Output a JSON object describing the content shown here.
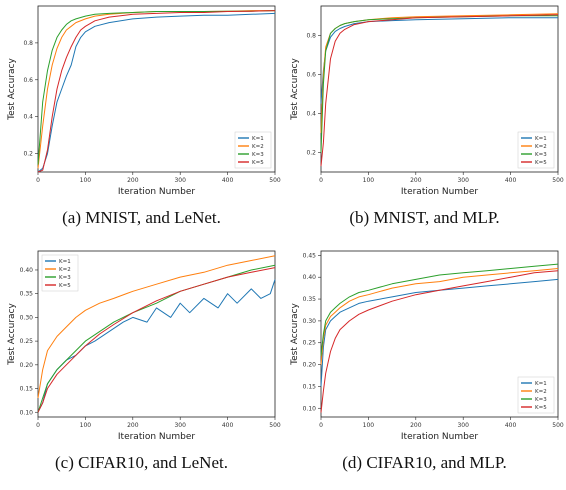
{
  "colors": {
    "K=1": "#1f77b4",
    "K=2": "#ff7f0e",
    "K=3": "#2ca02c",
    "K=5": "#d62728"
  },
  "chart_data": [
    {
      "type": "line",
      "caption": "(a) MNIST, and LeNet.",
      "xlabel": "Iteration Number",
      "ylabel": "Test Accuracy",
      "xlim": [
        0,
        500
      ],
      "ylim": [
        0.1,
        1.0
      ],
      "xticks": [
        0,
        100,
        200,
        300,
        400,
        500
      ],
      "xticklabels": [
        "0",
        "100",
        "200",
        "300",
        "400",
        "500"
      ],
      "yticks": [
        0.2,
        0.4,
        0.6,
        0.8
      ],
      "yticklabels": [
        "0.2",
        "0.4",
        "0.6",
        "0.8"
      ],
      "legend": "lower-right",
      "series": [
        {
          "name": "K=1",
          "x": [
            0,
            10,
            20,
            30,
            40,
            50,
            60,
            70,
            80,
            90,
            100,
            120,
            150,
            200,
            250,
            300,
            350,
            400,
            450,
            500
          ],
          "y": [
            0.1,
            0.12,
            0.2,
            0.35,
            0.48,
            0.55,
            0.62,
            0.68,
            0.78,
            0.83,
            0.86,
            0.89,
            0.91,
            0.93,
            0.94,
            0.945,
            0.95,
            0.95,
            0.955,
            0.96
          ]
        },
        {
          "name": "K=2",
          "x": [
            0,
            10,
            20,
            30,
            40,
            50,
            60,
            70,
            80,
            100,
            120,
            150,
            200,
            250,
            300,
            350,
            400,
            450,
            500
          ],
          "y": [
            0.12,
            0.35,
            0.55,
            0.68,
            0.77,
            0.83,
            0.87,
            0.89,
            0.91,
            0.93,
            0.945,
            0.955,
            0.965,
            0.97,
            0.97,
            0.97,
            0.972,
            0.975,
            0.975
          ]
        },
        {
          "name": "K=3",
          "x": [
            0,
            10,
            20,
            30,
            40,
            50,
            60,
            70,
            80,
            100,
            120,
            150,
            200,
            250,
            300,
            350,
            400,
            450,
            500
          ],
          "y": [
            0.14,
            0.48,
            0.65,
            0.76,
            0.83,
            0.87,
            0.9,
            0.92,
            0.93,
            0.945,
            0.955,
            0.96,
            0.965,
            0.97,
            0.97,
            0.97,
            0.972,
            0.972,
            0.975
          ]
        },
        {
          "name": "K=5",
          "x": [
            0,
            10,
            20,
            30,
            40,
            50,
            60,
            70,
            80,
            90,
            100,
            120,
            150,
            200,
            250,
            300,
            350,
            400,
            450,
            500
          ],
          "y": [
            0.1,
            0.11,
            0.22,
            0.4,
            0.55,
            0.65,
            0.72,
            0.78,
            0.83,
            0.87,
            0.89,
            0.92,
            0.94,
            0.955,
            0.96,
            0.965,
            0.965,
            0.97,
            0.972,
            0.975
          ]
        }
      ]
    },
    {
      "type": "line",
      "caption": "(b) MNIST, and MLP.",
      "xlabel": "Iteration Number",
      "ylabel": "Test Accuracy",
      "xlim": [
        0,
        500
      ],
      "ylim": [
        0.1,
        0.95
      ],
      "xticks": [
        0,
        100,
        200,
        300,
        400,
        500
      ],
      "xticklabels": [
        "0",
        "100",
        "200",
        "300",
        "400",
        "500"
      ],
      "yticks": [
        0.2,
        0.4,
        0.6,
        0.8
      ],
      "yticklabels": [
        "0.2",
        "0.4",
        "0.6",
        "0.8"
      ],
      "legend": "lower-right",
      "series": [
        {
          "name": "K=1",
          "x": [
            0,
            5,
            10,
            20,
            30,
            40,
            50,
            70,
            100,
            150,
            200,
            300,
            400,
            500
          ],
          "y": [
            0.45,
            0.62,
            0.72,
            0.79,
            0.82,
            0.835,
            0.845,
            0.86,
            0.87,
            0.875,
            0.88,
            0.885,
            0.89,
            0.89
          ]
        },
        {
          "name": "K=2",
          "x": [
            0,
            5,
            10,
            20,
            30,
            40,
            50,
            70,
            100,
            150,
            200,
            300,
            400,
            500
          ],
          "y": [
            0.3,
            0.6,
            0.74,
            0.81,
            0.835,
            0.85,
            0.86,
            0.87,
            0.88,
            0.89,
            0.895,
            0.9,
            0.905,
            0.91
          ]
        },
        {
          "name": "K=3",
          "x": [
            0,
            5,
            10,
            20,
            30,
            40,
            50,
            70,
            100,
            150,
            200,
            300,
            400,
            500
          ],
          "y": [
            0.2,
            0.55,
            0.72,
            0.81,
            0.835,
            0.85,
            0.86,
            0.87,
            0.88,
            0.885,
            0.89,
            0.895,
            0.9,
            0.9
          ]
        },
        {
          "name": "K=5",
          "x": [
            0,
            5,
            10,
            20,
            30,
            40,
            50,
            70,
            100,
            150,
            200,
            300,
            400,
            500
          ],
          "y": [
            0.13,
            0.25,
            0.45,
            0.68,
            0.77,
            0.81,
            0.83,
            0.855,
            0.87,
            0.88,
            0.89,
            0.895,
            0.9,
            0.905
          ]
        }
      ]
    },
    {
      "type": "line",
      "caption": "(c) CIFAR10, and LeNet.",
      "xlabel": "Iteration Number",
      "ylabel": "Test Accuracy",
      "xlim": [
        0,
        500
      ],
      "ylim": [
        0.09,
        0.44
      ],
      "xticks": [
        0,
        100,
        200,
        300,
        400,
        500
      ],
      "xticklabels": [
        "0",
        "100",
        "200",
        "300",
        "400",
        "500"
      ],
      "yticks": [
        0.1,
        0.15,
        0.2,
        0.25,
        0.3,
        0.35,
        0.4
      ],
      "yticklabels": [
        "0.10",
        "0.15",
        "0.20",
        "0.25",
        "0.30",
        "0.35",
        "0.40"
      ],
      "legend": "upper-left",
      "series": [
        {
          "name": "K=1",
          "x": [
            0,
            10,
            20,
            40,
            60,
            80,
            100,
            120,
            150,
            180,
            200,
            230,
            250,
            280,
            300,
            320,
            350,
            380,
            400,
            420,
            450,
            470,
            490,
            500
          ],
          "y": [
            0.1,
            0.12,
            0.16,
            0.19,
            0.21,
            0.22,
            0.24,
            0.25,
            0.27,
            0.29,
            0.3,
            0.29,
            0.32,
            0.3,
            0.33,
            0.31,
            0.34,
            0.32,
            0.35,
            0.33,
            0.36,
            0.34,
            0.35,
            0.38
          ]
        },
        {
          "name": "K=2",
          "x": [
            0,
            10,
            20,
            40,
            60,
            80,
            100,
            130,
            160,
            200,
            250,
            300,
            350,
            400,
            450,
            500
          ],
          "y": [
            0.13,
            0.19,
            0.23,
            0.26,
            0.28,
            0.3,
            0.315,
            0.33,
            0.34,
            0.355,
            0.37,
            0.385,
            0.395,
            0.41,
            0.42,
            0.43
          ]
        },
        {
          "name": "K=3",
          "x": [
            0,
            10,
            20,
            40,
            60,
            80,
            100,
            130,
            160,
            200,
            250,
            300,
            350,
            400,
            450,
            500
          ],
          "y": [
            0.1,
            0.13,
            0.16,
            0.19,
            0.21,
            0.23,
            0.25,
            0.27,
            0.29,
            0.31,
            0.33,
            0.355,
            0.37,
            0.385,
            0.4,
            0.41
          ]
        },
        {
          "name": "K=5",
          "x": [
            0,
            10,
            20,
            40,
            60,
            80,
            100,
            130,
            160,
            200,
            250,
            300,
            350,
            400,
            450,
            500
          ],
          "y": [
            0.1,
            0.12,
            0.15,
            0.18,
            0.2,
            0.22,
            0.24,
            0.265,
            0.285,
            0.31,
            0.335,
            0.355,
            0.37,
            0.385,
            0.395,
            0.405
          ]
        }
      ]
    },
    {
      "type": "line",
      "caption": "(d) CIFAR10, and MLP.",
      "xlabel": "Iteration Number",
      "ylabel": "Test Accuracy",
      "xlim": [
        0,
        500
      ],
      "ylim": [
        0.08,
        0.46
      ],
      "xticks": [
        0,
        100,
        200,
        300,
        400,
        500
      ],
      "xticklabels": [
        "0",
        "100",
        "200",
        "300",
        "400",
        "500"
      ],
      "yticks": [
        0.1,
        0.15,
        0.2,
        0.25,
        0.3,
        0.35,
        0.4,
        0.45
      ],
      "yticklabels": [
        "0.10",
        "0.15",
        "0.20",
        "0.25",
        "0.30",
        "0.35",
        "0.40",
        "0.45"
      ],
      "legend": "lower-right",
      "series": [
        {
          "name": "K=1",
          "x": [
            0,
            5,
            10,
            20,
            30,
            40,
            60,
            80,
            100,
            150,
            200,
            250,
            300,
            350,
            400,
            450,
            500
          ],
          "y": [
            0.15,
            0.24,
            0.28,
            0.3,
            0.31,
            0.32,
            0.33,
            0.34,
            0.345,
            0.355,
            0.365,
            0.37,
            0.375,
            0.38,
            0.385,
            0.39,
            0.395
          ]
        },
        {
          "name": "K=2",
          "x": [
            0,
            5,
            10,
            20,
            30,
            40,
            60,
            80,
            100,
            150,
            200,
            250,
            300,
            350,
            400,
            450,
            500
          ],
          "y": [
            0.2,
            0.26,
            0.29,
            0.31,
            0.32,
            0.33,
            0.345,
            0.355,
            0.36,
            0.375,
            0.385,
            0.39,
            0.4,
            0.405,
            0.41,
            0.415,
            0.42
          ]
        },
        {
          "name": "K=3",
          "x": [
            0,
            5,
            10,
            20,
            30,
            40,
            60,
            80,
            100,
            150,
            200,
            250,
            300,
            350,
            400,
            450,
            500
          ],
          "y": [
            0.22,
            0.27,
            0.3,
            0.32,
            0.33,
            0.34,
            0.355,
            0.365,
            0.37,
            0.385,
            0.395,
            0.405,
            0.41,
            0.415,
            0.42,
            0.425,
            0.43
          ]
        },
        {
          "name": "K=5",
          "x": [
            0,
            5,
            10,
            20,
            30,
            40,
            60,
            80,
            100,
            150,
            200,
            250,
            300,
            350,
            400,
            450,
            500
          ],
          "y": [
            0.09,
            0.14,
            0.18,
            0.23,
            0.26,
            0.28,
            0.3,
            0.315,
            0.325,
            0.345,
            0.36,
            0.37,
            0.38,
            0.39,
            0.4,
            0.41,
            0.415
          ]
        }
      ]
    }
  ]
}
